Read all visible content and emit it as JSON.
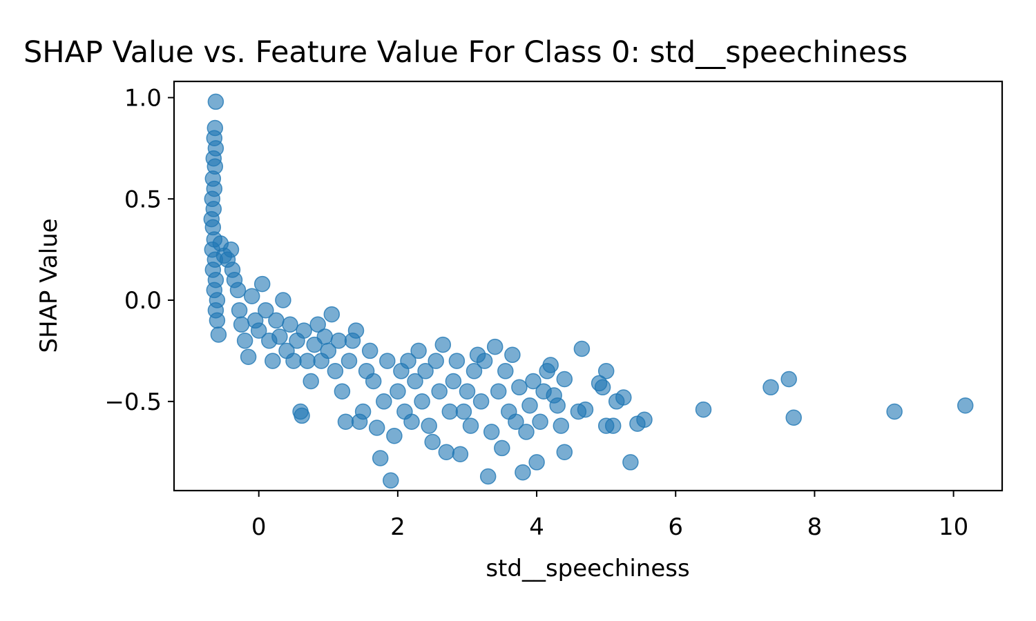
{
  "chart_data": {
    "type": "scatter",
    "title": "SHAP Value vs. Feature Value For Class 0: std__speechiness",
    "xlabel": "std__speechiness",
    "ylabel": "SHAP Value",
    "xlim": [
      -1.22,
      10.7
    ],
    "ylim": [
      -0.94,
      1.08
    ],
    "xticks": [
      0,
      2,
      4,
      6,
      8,
      10
    ],
    "xtick_labels": [
      "0",
      "2",
      "4",
      "6",
      "8",
      "10"
    ],
    "yticks": [
      1.0,
      0.5,
      0.0,
      -0.5
    ],
    "ytick_labels": [
      "1.0",
      "0.5",
      "0.0",
      "−0.5"
    ],
    "grid": false,
    "marker_color": "#1f77b4",
    "marker_alpha": 0.6,
    "series": [
      {
        "points": [
          [
            -0.62,
            0.98
          ],
          [
            -0.63,
            0.85
          ],
          [
            -0.64,
            0.8
          ],
          [
            -0.62,
            0.75
          ],
          [
            -0.65,
            0.7
          ],
          [
            -0.63,
            0.66
          ],
          [
            -0.66,
            0.6
          ],
          [
            -0.64,
            0.55
          ],
          [
            -0.67,
            0.5
          ],
          [
            -0.65,
            0.45
          ],
          [
            -0.68,
            0.4
          ],
          [
            -0.66,
            0.36
          ],
          [
            -0.64,
            0.3
          ],
          [
            -0.67,
            0.25
          ],
          [
            -0.63,
            0.2
          ],
          [
            -0.66,
            0.15
          ],
          [
            -0.62,
            0.1
          ],
          [
            -0.64,
            0.05
          ],
          [
            -0.6,
            0.0
          ],
          [
            -0.62,
            -0.05
          ],
          [
            -0.6,
            -0.1
          ],
          [
            -0.58,
            -0.17
          ],
          [
            -0.55,
            0.28
          ],
          [
            -0.5,
            0.22
          ],
          [
            -0.45,
            0.2
          ],
          [
            -0.4,
            0.25
          ],
          [
            -0.38,
            0.15
          ],
          [
            -0.35,
            0.1
          ],
          [
            -0.3,
            0.05
          ],
          [
            -0.28,
            -0.05
          ],
          [
            -0.25,
            -0.12
          ],
          [
            -0.2,
            -0.2
          ],
          [
            -0.15,
            -0.28
          ],
          [
            -0.1,
            0.02
          ],
          [
            -0.05,
            -0.1
          ],
          [
            0.0,
            -0.15
          ],
          [
            0.05,
            0.08
          ],
          [
            0.1,
            -0.05
          ],
          [
            0.15,
            -0.2
          ],
          [
            0.2,
            -0.3
          ],
          [
            0.25,
            -0.1
          ],
          [
            0.3,
            -0.18
          ],
          [
            0.35,
            0.0
          ],
          [
            0.4,
            -0.25
          ],
          [
            0.45,
            -0.12
          ],
          [
            0.5,
            -0.3
          ],
          [
            0.55,
            -0.2
          ],
          [
            0.6,
            -0.55
          ],
          [
            0.62,
            -0.57
          ],
          [
            0.65,
            -0.15
          ],
          [
            0.7,
            -0.3
          ],
          [
            0.75,
            -0.4
          ],
          [
            0.8,
            -0.22
          ],
          [
            0.85,
            -0.12
          ],
          [
            0.9,
            -0.3
          ],
          [
            0.95,
            -0.18
          ],
          [
            1.0,
            -0.25
          ],
          [
            1.05,
            -0.07
          ],
          [
            1.1,
            -0.35
          ],
          [
            1.15,
            -0.2
          ],
          [
            1.2,
            -0.45
          ],
          [
            1.25,
            -0.6
          ],
          [
            1.3,
            -0.3
          ],
          [
            1.35,
            -0.2
          ],
          [
            1.4,
            -0.15
          ],
          [
            1.45,
            -0.6
          ],
          [
            1.5,
            -0.55
          ],
          [
            1.55,
            -0.35
          ],
          [
            1.6,
            -0.25
          ],
          [
            1.65,
            -0.4
          ],
          [
            1.7,
            -0.63
          ],
          [
            1.75,
            -0.78
          ],
          [
            1.8,
            -0.5
          ],
          [
            1.85,
            -0.3
          ],
          [
            1.9,
            -0.89
          ],
          [
            1.95,
            -0.67
          ],
          [
            2.0,
            -0.45
          ],
          [
            2.05,
            -0.35
          ],
          [
            2.1,
            -0.55
          ],
          [
            2.15,
            -0.3
          ],
          [
            2.2,
            -0.6
          ],
          [
            2.25,
            -0.4
          ],
          [
            2.3,
            -0.25
          ],
          [
            2.35,
            -0.5
          ],
          [
            2.4,
            -0.35
          ],
          [
            2.45,
            -0.62
          ],
          [
            2.5,
            -0.7
          ],
          [
            2.55,
            -0.3
          ],
          [
            2.6,
            -0.45
          ],
          [
            2.65,
            -0.22
          ],
          [
            2.7,
            -0.75
          ],
          [
            2.75,
            -0.55
          ],
          [
            2.8,
            -0.4
          ],
          [
            2.85,
            -0.3
          ],
          [
            2.9,
            -0.76
          ],
          [
            2.95,
            -0.55
          ],
          [
            3.0,
            -0.45
          ],
          [
            3.05,
            -0.62
          ],
          [
            3.1,
            -0.35
          ],
          [
            3.15,
            -0.27
          ],
          [
            3.2,
            -0.5
          ],
          [
            3.25,
            -0.3
          ],
          [
            3.3,
            -0.87
          ],
          [
            3.35,
            -0.65
          ],
          [
            3.4,
            -0.23
          ],
          [
            3.45,
            -0.45
          ],
          [
            3.5,
            -0.73
          ],
          [
            3.55,
            -0.35
          ],
          [
            3.6,
            -0.55
          ],
          [
            3.65,
            -0.27
          ],
          [
            3.7,
            -0.6
          ],
          [
            3.75,
            -0.43
          ],
          [
            3.8,
            -0.85
          ],
          [
            3.85,
            -0.65
          ],
          [
            3.9,
            -0.52
          ],
          [
            3.95,
            -0.4
          ],
          [
            4.0,
            -0.8
          ],
          [
            4.05,
            -0.6
          ],
          [
            4.1,
            -0.45
          ],
          [
            4.15,
            -0.35
          ],
          [
            4.2,
            -0.32
          ],
          [
            4.25,
            -0.47
          ],
          [
            4.3,
            -0.52
          ],
          [
            4.35,
            -0.62
          ],
          [
            4.4,
            -0.75
          ],
          [
            4.4,
            -0.39
          ],
          [
            4.6,
            -0.55
          ],
          [
            4.65,
            -0.24
          ],
          [
            4.7,
            -0.54
          ],
          [
            4.9,
            -0.41
          ],
          [
            4.95,
            -0.43
          ],
          [
            5.0,
            -0.35
          ],
          [
            5.0,
            -0.62
          ],
          [
            5.1,
            -0.62
          ],
          [
            5.15,
            -0.5
          ],
          [
            5.25,
            -0.48
          ],
          [
            5.35,
            -0.8
          ],
          [
            5.45,
            -0.61
          ],
          [
            5.55,
            -0.59
          ],
          [
            6.4,
            -0.54
          ],
          [
            7.37,
            -0.43
          ],
          [
            7.63,
            -0.39
          ],
          [
            7.7,
            -0.58
          ],
          [
            9.15,
            -0.55
          ],
          [
            10.17,
            -0.52
          ]
        ]
      }
    ]
  }
}
